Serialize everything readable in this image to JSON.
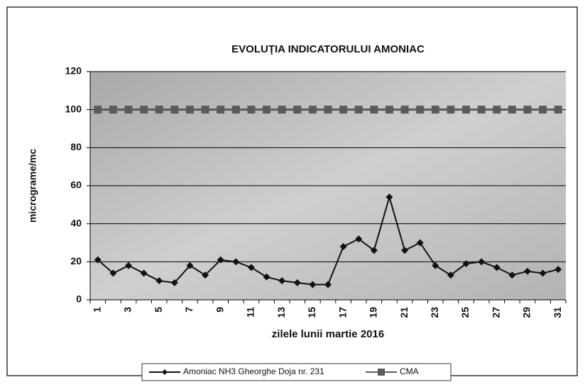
{
  "chart_data": {
    "type": "line",
    "title": "EVOLUŢIA INDICATORULUI AMONIAC",
    "y_label": "micrograme/mc",
    "x_label": "zilele lunii martie 2016",
    "categories": [
      "1",
      null,
      "3",
      null,
      "5",
      null,
      "7",
      null,
      "9",
      null,
      "11",
      null,
      "13",
      null,
      "15",
      null,
      "17",
      null,
      "19",
      null,
      "21",
      null,
      "23",
      null,
      "25",
      null,
      "27",
      null,
      "29",
      null,
      "31"
    ],
    "series": [
      {
        "name": "Amoniac NH3 Gheorghe Doja nr. 231",
        "color": "#111111",
        "marker": "diamond",
        "values": [
          21,
          14,
          18,
          14,
          10,
          9,
          18,
          13,
          21,
          20,
          17,
          12,
          10,
          9,
          8,
          8,
          28,
          32,
          26,
          54,
          26,
          30,
          18,
          13,
          19,
          20,
          17,
          13,
          15,
          14,
          16
        ]
      },
      {
        "name": "CMA",
        "color": "#5a5a5a",
        "marker": "square",
        "values": [
          100,
          100,
          100,
          100,
          100,
          100,
          100,
          100,
          100,
          100,
          100,
          100,
          100,
          100,
          100,
          100,
          100,
          100,
          100,
          100,
          100,
          100,
          100,
          100,
          100,
          100,
          100,
          100,
          100,
          100,
          100
        ]
      }
    ],
    "ylim": [
      0,
      120
    ],
    "yticks": [
      0,
      20,
      40,
      60,
      80,
      100,
      120
    ],
    "grid": true
  }
}
